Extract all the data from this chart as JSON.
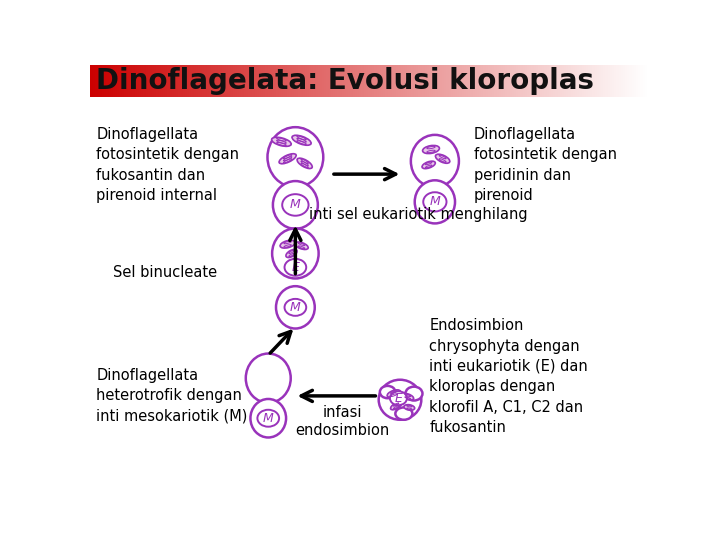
{
  "title": "Dinoflagelata: Evolusi kloroplas",
  "title_text_color": "#111111",
  "cell_outline_color": "#9933bb",
  "cell_fill_color": "#ffffff",
  "chloroplast_fill": "#e8c8e8",
  "chloroplast_outline": "#9933bb",
  "nucleus_fill": "#ffffff",
  "nucleus_outline": "#9933bb",
  "background_color": "#ffffff",
  "label_color": "#000000",
  "arrow_color": "#000000",
  "labels": {
    "top_left": "Dinoflagellata\nfotosintetik dengan\nfukosantin dan\npirenoid internal",
    "top_right": "Dinoflagellata\nfotosintetik dengan\nperidinin dan\npirenoid",
    "middle_label": "inti sel eukariotik menghilang",
    "middle_cell": "Sel binucleate",
    "bottom_left": "Dinoflagellata\nheterotrofik dengan\ninti mesokariotik (M)",
    "bottom_arrow": "infasi\nendosimbion",
    "bottom_right": "Endosimbion\nchrysophyta dengan\ninti eukariotik (E) dan\nkloroplas dengan\nklorofil A, C1, C2 dan\nfukosantin"
  }
}
